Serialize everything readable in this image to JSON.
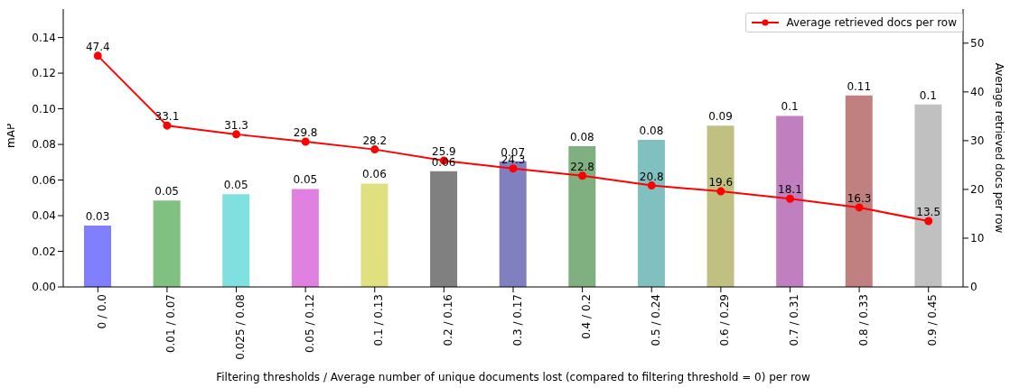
{
  "chart_data": {
    "type": "bar",
    "xlabel": "Filtering thresholds / Average number of unique documents lost (compared to filtering threshold = 0) per row",
    "ylabel": "mAP",
    "y2label": "Average retrieved docs per row",
    "categories": [
      "0 / 0.0",
      "0.01 / 0.07",
      "0.025 / 0.08",
      "0.05 / 0.12",
      "0.1 / 0.13",
      "0.2 / 0.16",
      "0.3 / 0.17",
      "0.4 / 0.2",
      "0.5 / 0.24",
      "0.6 / 0.29",
      "0.7 / 0.31",
      "0.8 / 0.33",
      "0.9 / 0.45"
    ],
    "series": [
      {
        "colors": [
          "#8080ff",
          "#80c080",
          "#80e0e0",
          "#e080e0",
          "#e0e080",
          "#808080",
          "#8080c0",
          "#80b080",
          "#80c0c0",
          "#c0c080",
          "#c080c0",
          "#c08080",
          "#c0c0c0"
        ],
        "values": [
          0.0345,
          0.0485,
          0.052,
          0.055,
          0.058,
          0.065,
          0.0705,
          0.079,
          0.0825,
          0.0905,
          0.096,
          0.1075,
          0.1025
        ],
        "value_labels": [
          "0.03",
          "0.05",
          "0.05",
          "0.05",
          "0.06",
          "0.06",
          "0.07",
          "0.08",
          "0.08",
          "0.09",
          "0.1",
          "0.11",
          "0.1"
        ]
      },
      {
        "type": "line",
        "axis": "y2",
        "name": "Average retrieved docs per row",
        "color": "#ff0000",
        "values": [
          47.4,
          33.1,
          31.3,
          29.8,
          28.2,
          25.9,
          24.3,
          22.8,
          20.8,
          19.6,
          18.1,
          16.3,
          13.5
        ],
        "value_labels": [
          "47.4",
          "33.1",
          "31.3",
          "29.8",
          "28.2",
          "25.9",
          "24.3",
          "22.8",
          "20.8",
          "19.6",
          "18.1",
          "16.3",
          "13.5"
        ]
      }
    ],
    "ylim": [
      0,
      0.156
    ],
    "yticks": [
      {
        "value": 0,
        "label": "0.00"
      },
      {
        "value": 0.02,
        "label": "0.02"
      },
      {
        "value": 0.04,
        "label": "0.04"
      },
      {
        "value": 0.06,
        "label": "0.06"
      },
      {
        "value": 0.08,
        "label": "0.08"
      },
      {
        "value": 0.1,
        "label": "0.10"
      },
      {
        "value": 0.12,
        "label": "0.12"
      },
      {
        "value": 0.14,
        "label": "0.14"
      }
    ],
    "y2lim": [
      0,
      57
    ],
    "y2ticks": [
      0,
      10,
      20,
      30,
      40,
      50
    ],
    "marker": "circle",
    "line_style": "solid",
    "legend": "top right"
  }
}
